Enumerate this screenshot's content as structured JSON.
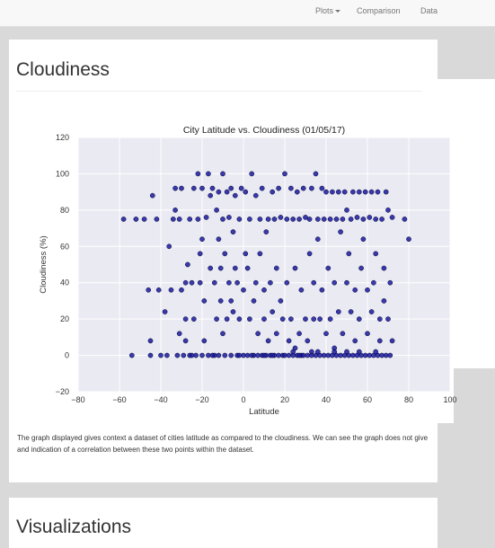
{
  "nav": {
    "items": [
      {
        "label": "Plots",
        "dropdown": true
      },
      {
        "label": "Comparison",
        "dropdown": false
      },
      {
        "label": "Data",
        "dropdown": false
      }
    ]
  },
  "sections": {
    "cloudiness": {
      "title": "Cloudiness",
      "description": "The graph displayed gives context a dataset of cities latitude as compared to the cloudiness. We can see the graph does not give and indication of a correlation between these two points within the dataset."
    },
    "visualizations": {
      "title": "Visualizations"
    }
  },
  "colors": {
    "plot_bg": "#eaeaf2",
    "grid": "#ffffff",
    "marker": "#1a1aa0",
    "marker_edge": "#000033"
  },
  "chart_data": {
    "type": "scatter",
    "title": "City Latitude vs. Cloudiness (01/05/17)",
    "xlabel": "Latitude",
    "ylabel": "Cloudiness (%)",
    "xlim": [
      -80,
      100
    ],
    "ylim": [
      -20,
      120
    ],
    "xticks": [
      -80,
      -60,
      -40,
      -20,
      0,
      20,
      40,
      60,
      80,
      100
    ],
    "yticks": [
      -20,
      0,
      20,
      40,
      60,
      80,
      100,
      120
    ],
    "grid": true,
    "legend": "none",
    "series": [
      {
        "points": [
          [
            -54,
            0
          ],
          [
            -52,
            75
          ],
          [
            -48,
            75
          ],
          [
            -46,
            36
          ],
          [
            -45,
            8
          ],
          [
            -45,
            0
          ],
          [
            -44,
            88
          ],
          [
            -42,
            75
          ],
          [
            -41,
            36
          ],
          [
            -40,
            0
          ],
          [
            -38,
            24
          ],
          [
            -37,
            0
          ],
          [
            -36,
            60
          ],
          [
            -35,
            36
          ],
          [
            -34,
            75
          ],
          [
            -33,
            80
          ],
          [
            -33,
            92
          ],
          [
            -32,
            0
          ],
          [
            -31,
            12
          ],
          [
            -31,
            75
          ],
          [
            -30,
            36
          ],
          [
            -30,
            92
          ],
          [
            -29,
            0
          ],
          [
            -28,
            8
          ],
          [
            -28,
            20
          ],
          [
            -28,
            40
          ],
          [
            -27,
            50
          ],
          [
            -26,
            0
          ],
          [
            -26,
            75
          ],
          [
            -25,
            40
          ],
          [
            -24,
            20
          ],
          [
            -24,
            92
          ],
          [
            -23,
            0
          ],
          [
            -22,
            75
          ],
          [
            -22,
            100
          ],
          [
            -21,
            40
          ],
          [
            -21,
            56
          ],
          [
            -20,
            0
          ],
          [
            -20,
            64
          ],
          [
            -20,
            92
          ],
          [
            -19,
            8
          ],
          [
            -19,
            30
          ],
          [
            -18,
            76
          ],
          [
            -17,
            0
          ],
          [
            -17,
            100
          ],
          [
            -16,
            48
          ],
          [
            -16,
            88
          ],
          [
            -15,
            92
          ],
          [
            -14,
            0
          ],
          [
            -14,
            40
          ],
          [
            -13,
            20
          ],
          [
            -13,
            80
          ],
          [
            -12,
            0
          ],
          [
            -12,
            64
          ],
          [
            -12,
            90
          ],
          [
            -11,
            48
          ],
          [
            -11,
            30
          ],
          [
            -10,
            12
          ],
          [
            -10,
            75
          ],
          [
            -10,
            100
          ],
          [
            -9,
            0
          ],
          [
            -9,
            56
          ],
          [
            -8,
            20
          ],
          [
            -8,
            90
          ],
          [
            -7,
            40
          ],
          [
            -7,
            76
          ],
          [
            -6,
            0
          ],
          [
            -6,
            92
          ],
          [
            -6,
            30
          ],
          [
            -5,
            24
          ],
          [
            -5,
            68
          ],
          [
            -4,
            48
          ],
          [
            -4,
            88
          ],
          [
            -3,
            0
          ],
          [
            -3,
            40
          ],
          [
            -2,
            20
          ],
          [
            -2,
            75
          ],
          [
            -1,
            92
          ],
          [
            0,
            0
          ],
          [
            0,
            36
          ],
          [
            1,
            56
          ],
          [
            1,
            90
          ],
          [
            2,
            0
          ],
          [
            2,
            48
          ],
          [
            3,
            20
          ],
          [
            3,
            75
          ],
          [
            4,
            100
          ],
          [
            5,
            0
          ],
          [
            5,
            30
          ],
          [
            6,
            40
          ],
          [
            6,
            88
          ],
          [
            7,
            0
          ],
          [
            7,
            12
          ],
          [
            8,
            75
          ],
          [
            8,
            56
          ],
          [
            9,
            0
          ],
          [
            9,
            92
          ],
          [
            10,
            20
          ],
          [
            10,
            36
          ],
          [
            11,
            0
          ],
          [
            11,
            68
          ],
          [
            12,
            75
          ],
          [
            12,
            8
          ],
          [
            13,
            0
          ],
          [
            13,
            40
          ],
          [
            14,
            90
          ],
          [
            14,
            24
          ],
          [
            15,
            0
          ],
          [
            15,
            75
          ],
          [
            16,
            48
          ],
          [
            16,
            12
          ],
          [
            17,
            0
          ],
          [
            17,
            92
          ],
          [
            18,
            30
          ],
          [
            18,
            76
          ],
          [
            19,
            0
          ],
          [
            19,
            20
          ],
          [
            20,
            0
          ],
          [
            20,
            100
          ],
          [
            21,
            75
          ],
          [
            21,
            40
          ],
          [
            22,
            0
          ],
          [
            22,
            8
          ],
          [
            23,
            92
          ],
          [
            23,
            20
          ],
          [
            24,
            0
          ],
          [
            24,
            75
          ],
          [
            25,
            48
          ],
          [
            25,
            4
          ],
          [
            26,
            0
          ],
          [
            26,
            90
          ],
          [
            27,
            12
          ],
          [
            27,
            75
          ],
          [
            28,
            0
          ],
          [
            28,
            36
          ],
          [
            29,
            0
          ],
          [
            29,
            92
          ],
          [
            30,
            20
          ],
          [
            30,
            76
          ],
          [
            31,
            0
          ],
          [
            31,
            8
          ],
          [
            32,
            75
          ],
          [
            32,
            56
          ],
          [
            33,
            0
          ],
          [
            33,
            92
          ],
          [
            34,
            20
          ],
          [
            34,
            40
          ],
          [
            35,
            0
          ],
          [
            35,
            100
          ],
          [
            36,
            75
          ],
          [
            36,
            64
          ],
          [
            37,
            0
          ],
          [
            37,
            20
          ],
          [
            38,
            92
          ],
          [
            38,
            36
          ],
          [
            39,
            0
          ],
          [
            39,
            75
          ],
          [
            40,
            12
          ],
          [
            40,
            90
          ],
          [
            41,
            0
          ],
          [
            41,
            48
          ],
          [
            42,
            75
          ],
          [
            42,
            20
          ],
          [
            43,
            0
          ],
          [
            43,
            90
          ],
          [
            44,
            40
          ],
          [
            44,
            4
          ],
          [
            45,
            0
          ],
          [
            45,
            75
          ],
          [
            46,
            90
          ],
          [
            46,
            24
          ],
          [
            47,
            0
          ],
          [
            47,
            68
          ],
          [
            48,
            75
          ],
          [
            48,
            12
          ],
          [
            49,
            0
          ],
          [
            49,
            90
          ],
          [
            50,
            40
          ],
          [
            50,
            80
          ],
          [
            51,
            0
          ],
          [
            51,
            56
          ],
          [
            52,
            75
          ],
          [
            52,
            24
          ],
          [
            53,
            0
          ],
          [
            53,
            90
          ],
          [
            54,
            8
          ],
          [
            54,
            36
          ],
          [
            55,
            0
          ],
          [
            55,
            76
          ],
          [
            56,
            90
          ],
          [
            56,
            20
          ],
          [
            57,
            0
          ],
          [
            57,
            48
          ],
          [
            58,
            75
          ],
          [
            58,
            64
          ],
          [
            59,
            0
          ],
          [
            59,
            90
          ],
          [
            60,
            12
          ],
          [
            60,
            36
          ],
          [
            61,
            0
          ],
          [
            61,
            76
          ],
          [
            62,
            90
          ],
          [
            62,
            24
          ],
          [
            63,
            0
          ],
          [
            63,
            40
          ],
          [
            64,
            75
          ],
          [
            64,
            56
          ],
          [
            65,
            0
          ],
          [
            65,
            90
          ],
          [
            66,
            20
          ],
          [
            66,
            8
          ],
          [
            67,
            0
          ],
          [
            67,
            75
          ],
          [
            68,
            48
          ],
          [
            68,
            30
          ],
          [
            69,
            0
          ],
          [
            69,
            90
          ],
          [
            70,
            20
          ],
          [
            70,
            80
          ],
          [
            71,
            0
          ],
          [
            71,
            40
          ],
          [
            72,
            76
          ],
          [
            72,
            8
          ],
          [
            -58,
            75
          ],
          [
            78,
            75
          ],
          [
            80,
            64
          ],
          [
            -2,
            0
          ],
          [
            4,
            0
          ],
          [
            14,
            0
          ],
          [
            27,
            0
          ],
          [
            33,
            2
          ],
          [
            44,
            2
          ],
          [
            56,
            2
          ],
          [
            64,
            2
          ],
          [
            -25,
            0
          ],
          [
            -15,
            0
          ],
          [
            10,
            0
          ],
          [
            24,
            2
          ],
          [
            36,
            2
          ],
          [
            50,
            2
          ]
        ]
      }
    ]
  }
}
